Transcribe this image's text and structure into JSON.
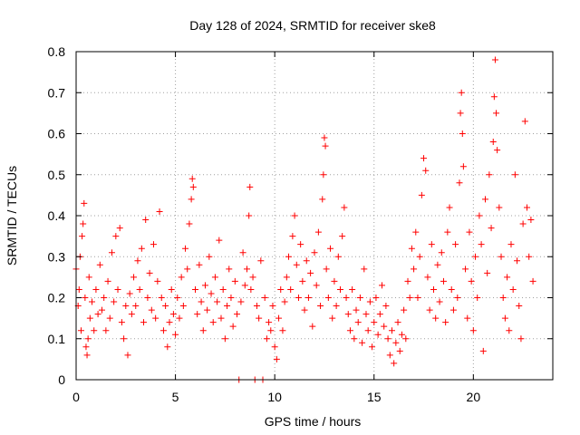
{
  "colors": {
    "marker": "#ff0000",
    "axis": "#000000",
    "grid": "#a0a0a0",
    "background": "#ffffff"
  },
  "chart_data": {
    "type": "scatter",
    "title": "Day 128 of 2024, SRMTID for receiver ske8",
    "xlabel": "GPS time / hours",
    "ylabel": "SRMTID / TECUs",
    "xlim": [
      0,
      24
    ],
    "ylim": [
      0,
      0.8
    ],
    "xticks": [
      0,
      5,
      10,
      15,
      20
    ],
    "xtick_labels": [
      "0",
      "5",
      "10",
      "15",
      "20"
    ],
    "yticks": [
      0,
      0.1,
      0.2,
      0.3,
      0.4,
      0.5,
      0.6,
      0.7,
      0.8
    ],
    "ytick_labels": [
      "0",
      "0.1",
      "0.2",
      "0.3",
      "0.4",
      "0.5",
      "0.6",
      "0.7",
      "0.8"
    ],
    "grid": true,
    "marker": "+",
    "marker_color": "#ff0000",
    "series": [
      {
        "name": "SRMTID",
        "points": [
          [
            0.0,
            0.27
          ],
          [
            0.1,
            0.18
          ],
          [
            0.15,
            0.22
          ],
          [
            0.2,
            0.3
          ],
          [
            0.25,
            0.12
          ],
          [
            0.3,
            0.35
          ],
          [
            0.35,
            0.38
          ],
          [
            0.4,
            0.43
          ],
          [
            0.45,
            0.2
          ],
          [
            0.5,
            0.08
          ],
          [
            0.55,
            0.06
          ],
          [
            0.6,
            0.1
          ],
          [
            0.65,
            0.25
          ],
          [
            0.7,
            0.15
          ],
          [
            0.8,
            0.19
          ],
          [
            0.9,
            0.12
          ],
          [
            1.0,
            0.22
          ],
          [
            1.1,
            0.16
          ],
          [
            1.2,
            0.28
          ],
          [
            1.3,
            0.17
          ],
          [
            1.4,
            0.2
          ],
          [
            1.5,
            0.12
          ],
          [
            1.6,
            0.24
          ],
          [
            1.7,
            0.15
          ],
          [
            1.8,
            0.31
          ],
          [
            1.9,
            0.19
          ],
          [
            2.0,
            0.35
          ],
          [
            2.1,
            0.22
          ],
          [
            2.2,
            0.37
          ],
          [
            2.3,
            0.14
          ],
          [
            2.4,
            0.1
          ],
          [
            2.5,
            0.18
          ],
          [
            2.6,
            0.06
          ],
          [
            2.7,
            0.21
          ],
          [
            2.8,
            0.16
          ],
          [
            2.9,
            0.25
          ],
          [
            3.0,
            0.18
          ],
          [
            3.1,
            0.29
          ],
          [
            3.2,
            0.22
          ],
          [
            3.3,
            0.32
          ],
          [
            3.4,
            0.14
          ],
          [
            3.5,
            0.39
          ],
          [
            3.6,
            0.2
          ],
          [
            3.7,
            0.26
          ],
          [
            3.8,
            0.17
          ],
          [
            3.9,
            0.33
          ],
          [
            4.0,
            0.15
          ],
          [
            4.1,
            0.24
          ],
          [
            4.2,
            0.41
          ],
          [
            4.3,
            0.2
          ],
          [
            4.4,
            0.12
          ],
          [
            4.5,
            0.18
          ],
          [
            4.6,
            0.08
          ],
          [
            4.7,
            0.14
          ],
          [
            4.8,
            0.22
          ],
          [
            4.9,
            0.16
          ],
          [
            5.0,
            0.11
          ],
          [
            5.1,
            0.2
          ],
          [
            5.2,
            0.15
          ],
          [
            5.3,
            0.25
          ],
          [
            5.4,
            0.18
          ],
          [
            5.5,
            0.32
          ],
          [
            5.6,
            0.27
          ],
          [
            5.7,
            0.38
          ],
          [
            5.8,
            0.44
          ],
          [
            5.85,
            0.49
          ],
          [
            5.9,
            0.47
          ],
          [
            6.0,
            0.22
          ],
          [
            6.1,
            0.16
          ],
          [
            6.2,
            0.28
          ],
          [
            6.3,
            0.19
          ],
          [
            6.4,
            0.12
          ],
          [
            6.5,
            0.23
          ],
          [
            6.6,
            0.17
          ],
          [
            6.7,
            0.3
          ],
          [
            6.8,
            0.21
          ],
          [
            6.9,
            0.14
          ],
          [
            7.0,
            0.25
          ],
          [
            7.1,
            0.19
          ],
          [
            7.2,
            0.34
          ],
          [
            7.3,
            0.15
          ],
          [
            7.4,
            0.22
          ],
          [
            7.5,
            0.1
          ],
          [
            7.6,
            0.18
          ],
          [
            7.7,
            0.27
          ],
          [
            7.8,
            0.2
          ],
          [
            7.9,
            0.13
          ],
          [
            8.0,
            0.24
          ],
          [
            8.1,
            0.16
          ],
          [
            8.2,
            0.0
          ],
          [
            8.3,
            0.19
          ],
          [
            8.4,
            0.31
          ],
          [
            8.5,
            0.23
          ],
          [
            8.6,
            0.27
          ],
          [
            8.7,
            0.4
          ],
          [
            8.75,
            0.47
          ],
          [
            8.8,
            0.22
          ],
          [
            8.9,
            0.25
          ],
          [
            9.0,
            0.0
          ],
          [
            9.1,
            0.18
          ],
          [
            9.2,
            0.15
          ],
          [
            9.3,
            0.29
          ],
          [
            9.4,
            0.0
          ],
          [
            9.5,
            0.2
          ],
          [
            9.6,
            0.1
          ],
          [
            9.7,
            0.14
          ],
          [
            9.8,
            0.12
          ],
          [
            9.9,
            0.18
          ],
          [
            10.0,
            0.08
          ],
          [
            10.1,
            0.05
          ],
          [
            10.2,
            0.15
          ],
          [
            10.3,
            0.22
          ],
          [
            10.4,
            0.12
          ],
          [
            10.5,
            0.19
          ],
          [
            10.6,
            0.25
          ],
          [
            10.7,
            0.3
          ],
          [
            10.8,
            0.22
          ],
          [
            10.9,
            0.35
          ],
          [
            11.0,
            0.4
          ],
          [
            11.1,
            0.28
          ],
          [
            11.2,
            0.2
          ],
          [
            11.3,
            0.33
          ],
          [
            11.4,
            0.24
          ],
          [
            11.5,
            0.17
          ],
          [
            11.6,
            0.29
          ],
          [
            11.7,
            0.2
          ],
          [
            11.8,
            0.26
          ],
          [
            11.9,
            0.13
          ],
          [
            12.0,
            0.31
          ],
          [
            12.1,
            0.23
          ],
          [
            12.2,
            0.36
          ],
          [
            12.3,
            0.18
          ],
          [
            12.4,
            0.44
          ],
          [
            12.45,
            0.5
          ],
          [
            12.5,
            0.59
          ],
          [
            12.55,
            0.57
          ],
          [
            12.6,
            0.27
          ],
          [
            12.7,
            0.2
          ],
          [
            12.8,
            0.32
          ],
          [
            12.9,
            0.15
          ],
          [
            13.0,
            0.24
          ],
          [
            13.1,
            0.18
          ],
          [
            13.2,
            0.3
          ],
          [
            13.3,
            0.22
          ],
          [
            13.4,
            0.35
          ],
          [
            13.5,
            0.42
          ],
          [
            13.6,
            0.2
          ],
          [
            13.7,
            0.16
          ],
          [
            13.8,
            0.12
          ],
          [
            13.9,
            0.22
          ],
          [
            14.0,
            0.1
          ],
          [
            14.1,
            0.17
          ],
          [
            14.2,
            0.14
          ],
          [
            14.3,
            0.2
          ],
          [
            14.4,
            0.09
          ],
          [
            14.5,
            0.27
          ],
          [
            14.6,
            0.16
          ],
          [
            14.7,
            0.12
          ],
          [
            14.8,
            0.19
          ],
          [
            14.9,
            0.08
          ],
          [
            15.0,
            0.14
          ],
          [
            15.1,
            0.2
          ],
          [
            15.2,
            0.11
          ],
          [
            15.3,
            0.16
          ],
          [
            15.4,
            0.23
          ],
          [
            15.5,
            0.13
          ],
          [
            15.6,
            0.18
          ],
          [
            15.7,
            0.1
          ],
          [
            15.8,
            0.06
          ],
          [
            15.9,
            0.12
          ],
          [
            16.0,
            0.04
          ],
          [
            16.1,
            0.09
          ],
          [
            16.2,
            0.14
          ],
          [
            16.3,
            0.07
          ],
          [
            16.4,
            0.11
          ],
          [
            16.5,
            0.17
          ],
          [
            16.6,
            0.1
          ],
          [
            16.7,
            0.24
          ],
          [
            16.8,
            0.2
          ],
          [
            16.9,
            0.32
          ],
          [
            17.0,
            0.27
          ],
          [
            17.1,
            0.36
          ],
          [
            17.2,
            0.2
          ],
          [
            17.3,
            0.3
          ],
          [
            17.4,
            0.45
          ],
          [
            17.5,
            0.54
          ],
          [
            17.6,
            0.51
          ],
          [
            17.7,
            0.25
          ],
          [
            17.8,
            0.17
          ],
          [
            17.9,
            0.33
          ],
          [
            18.0,
            0.22
          ],
          [
            18.1,
            0.15
          ],
          [
            18.2,
            0.28
          ],
          [
            18.3,
            0.19
          ],
          [
            18.4,
            0.31
          ],
          [
            18.5,
            0.24
          ],
          [
            18.6,
            0.14
          ],
          [
            18.7,
            0.36
          ],
          [
            18.8,
            0.42
          ],
          [
            18.9,
            0.22
          ],
          [
            19.0,
            0.17
          ],
          [
            19.1,
            0.33
          ],
          [
            19.2,
            0.2
          ],
          [
            19.3,
            0.48
          ],
          [
            19.35,
            0.65
          ],
          [
            19.4,
            0.7
          ],
          [
            19.45,
            0.6
          ],
          [
            19.5,
            0.52
          ],
          [
            19.6,
            0.27
          ],
          [
            19.7,
            0.15
          ],
          [
            19.8,
            0.36
          ],
          [
            19.9,
            0.24
          ],
          [
            20.0,
            0.12
          ],
          [
            20.1,
            0.3
          ],
          [
            20.2,
            0.2
          ],
          [
            20.3,
            0.4
          ],
          [
            20.4,
            0.33
          ],
          [
            20.5,
            0.07
          ],
          [
            20.6,
            0.44
          ],
          [
            20.7,
            0.26
          ],
          [
            20.8,
            0.5
          ],
          [
            20.9,
            0.37
          ],
          [
            21.0,
            0.58
          ],
          [
            21.05,
            0.69
          ],
          [
            21.1,
            0.78
          ],
          [
            21.15,
            0.65
          ],
          [
            21.2,
            0.56
          ],
          [
            21.3,
            0.42
          ],
          [
            21.4,
            0.3
          ],
          [
            21.5,
            0.2
          ],
          [
            21.6,
            0.15
          ],
          [
            21.7,
            0.25
          ],
          [
            21.8,
            0.12
          ],
          [
            21.9,
            0.33
          ],
          [
            22.0,
            0.22
          ],
          [
            22.1,
            0.5
          ],
          [
            22.2,
            0.29
          ],
          [
            22.3,
            0.18
          ],
          [
            22.4,
            0.1
          ],
          [
            22.5,
            0.38
          ],
          [
            22.6,
            0.63
          ],
          [
            22.7,
            0.42
          ],
          [
            22.8,
            0.3
          ],
          [
            22.9,
            0.39
          ],
          [
            23.0,
            0.24
          ]
        ]
      }
    ]
  }
}
